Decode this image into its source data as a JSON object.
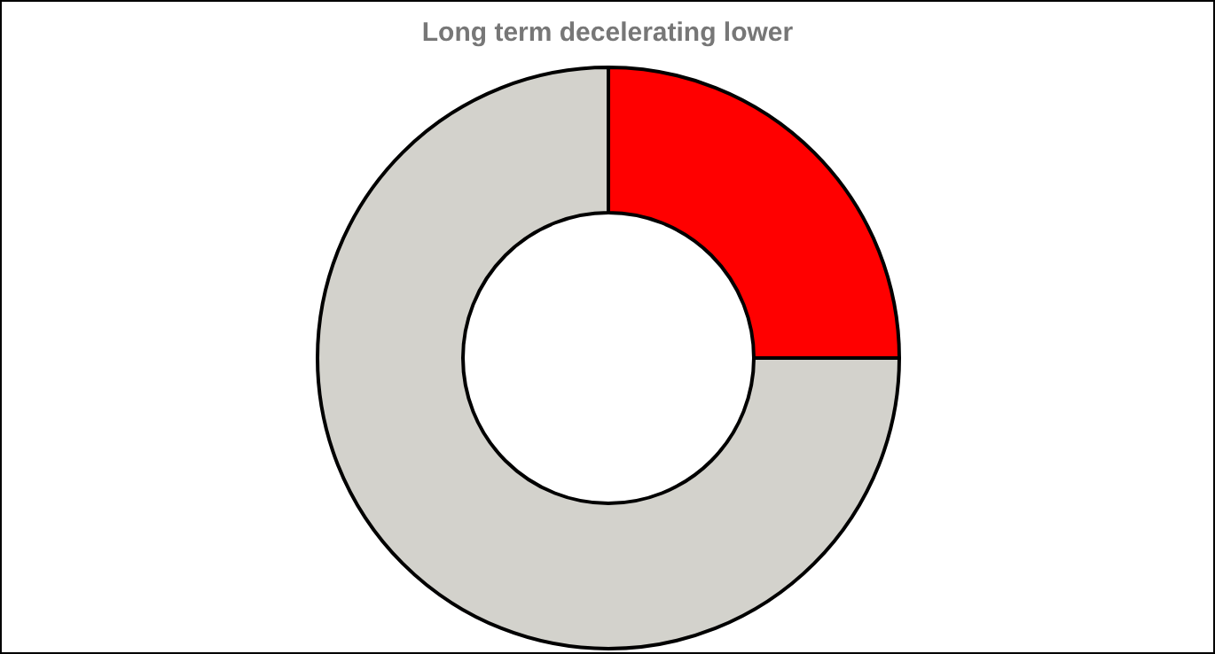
{
  "chart_data": {
    "type": "donut",
    "title": "Long term decelerating lower",
    "categories": [
      null,
      null
    ],
    "values": [
      25,
      75
    ],
    "colors": [
      "#ff0000",
      "#d3d2cc"
    ]
  }
}
